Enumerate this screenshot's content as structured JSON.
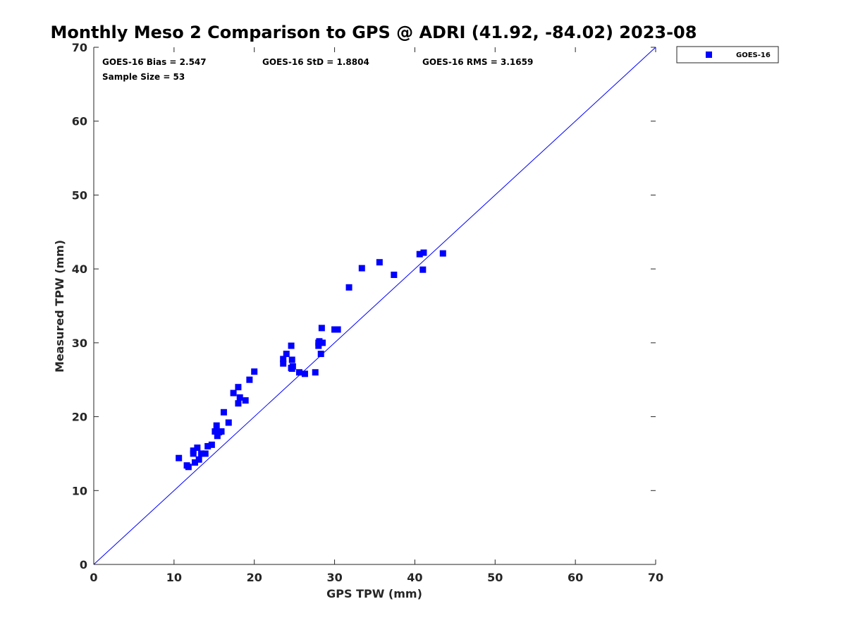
{
  "chart_data": {
    "type": "scatter",
    "title": "Monthly Meso 2 Comparison to GPS @ ADRI (41.92, -84.02) 2023-08",
    "xlabel": "GPS TPW (mm)",
    "ylabel": "Measured TPW (mm)",
    "xlim": [
      0,
      70
    ],
    "ylim": [
      0,
      70
    ],
    "xticks": [
      "0",
      "10",
      "20",
      "30",
      "40",
      "50",
      "60",
      "70"
    ],
    "yticks": [
      "0",
      "10",
      "20",
      "30",
      "40",
      "50",
      "60",
      "70"
    ],
    "grid": false,
    "legend": "outside-top-right",
    "reference_line": {
      "x": [
        0,
        70
      ],
      "y": [
        0,
        70
      ],
      "color": "#0000ff"
    },
    "stats": {
      "bias": "GOES-16 Bias = 2.547",
      "std": "GOES-16 StD = 1.8804",
      "rms": "GOES-16 RMS = 3.1659",
      "sample_size": "Sample Size = 53"
    },
    "series": [
      {
        "name": "GOES-16",
        "color": "#0000ff",
        "marker": "square",
        "points": [
          [
            10.6,
            14.4
          ],
          [
            11.6,
            13.4
          ],
          [
            11.8,
            13.2
          ],
          [
            12.4,
            15.0
          ],
          [
            12.4,
            15.4
          ],
          [
            12.6,
            13.8
          ],
          [
            12.9,
            15.8
          ],
          [
            13.1,
            14.2
          ],
          [
            13.4,
            15.0
          ],
          [
            13.9,
            15.0
          ],
          [
            14.2,
            16.0
          ],
          [
            14.7,
            16.2
          ],
          [
            15.1,
            18.0
          ],
          [
            15.3,
            18.8
          ],
          [
            15.4,
            17.4
          ],
          [
            15.6,
            17.9
          ],
          [
            15.9,
            18.0
          ],
          [
            16.2,
            20.6
          ],
          [
            16.8,
            19.2
          ],
          [
            17.4,
            23.2
          ],
          [
            18.0,
            24.0
          ],
          [
            18.0,
            21.8
          ],
          [
            18.2,
            22.6
          ],
          [
            18.9,
            22.2
          ],
          [
            19.4,
            25.0
          ],
          [
            20.0,
            26.1
          ],
          [
            23.6,
            27.8
          ],
          [
            23.6,
            27.2
          ],
          [
            24.0,
            28.5
          ],
          [
            24.6,
            29.6
          ],
          [
            24.6,
            26.6
          ],
          [
            24.7,
            27.7
          ],
          [
            24.8,
            26.8
          ],
          [
            25.6,
            26.0
          ],
          [
            26.3,
            25.8
          ],
          [
            27.6,
            26.0
          ],
          [
            28.0,
            29.6
          ],
          [
            28.1,
            30.2
          ],
          [
            28.3,
            28.5
          ],
          [
            28.4,
            32.0
          ],
          [
            28.5,
            30.0
          ],
          [
            30.0,
            31.8
          ],
          [
            30.4,
            31.8
          ],
          [
            31.8,
            37.5
          ],
          [
            33.4,
            40.1
          ],
          [
            35.6,
            40.9
          ],
          [
            37.4,
            39.2
          ],
          [
            40.6,
            42.0
          ],
          [
            41.0,
            39.9
          ],
          [
            41.1,
            42.2
          ],
          [
            43.5,
            42.1
          ],
          [
            28.0,
            30.0
          ],
          [
            24.7,
            26.5
          ]
        ]
      }
    ]
  }
}
